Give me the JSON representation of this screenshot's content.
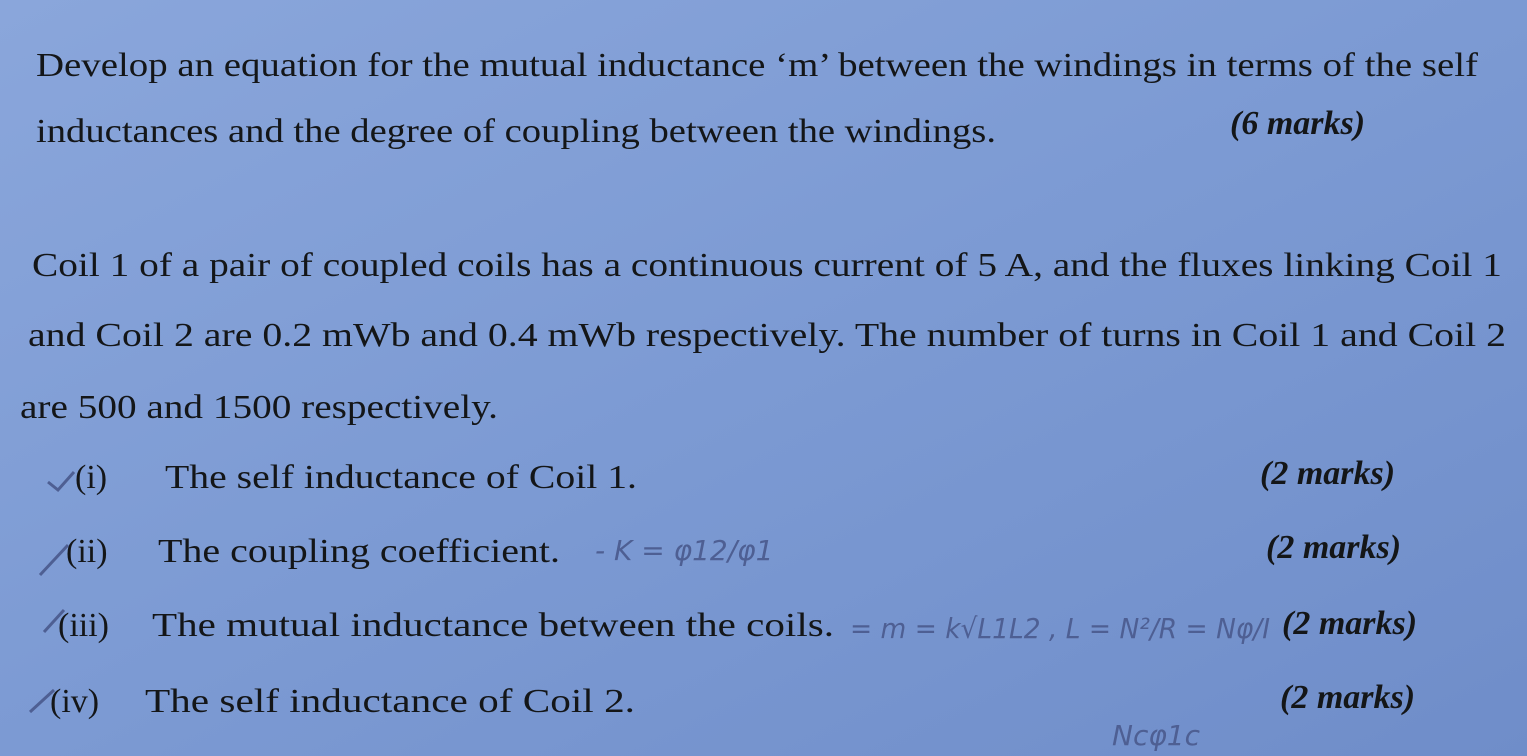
{
  "question_a": {
    "lines": [
      "Develop an equation for the mutual inductance ‘m’ between the windings in terms of the self",
      "inductances and the degree of coupling between the windings."
    ],
    "marks": "(6 marks)"
  },
  "question_b": {
    "lines": [
      "Coil 1 of a pair of coupled coils has a continuous current of 5 A, and the fluxes linking Coil 1",
      "and Coil 2 are 0.2 mWb and 0.4 mWb respectively. The number of turns in Coil 1 and Coil 2",
      "are 500 and 1500 respectively."
    ],
    "items": [
      {
        "number": "(i)",
        "text": "The self inductance of Coil 1.",
        "marks": "(2 marks)"
      },
      {
        "number": "(ii)",
        "text": "The coupling coefficient.",
        "marks": "(2 marks)",
        "annotation": "- K = φ12/φ1"
      },
      {
        "number": "(iii)",
        "text": "The mutual inductance between the coils.",
        "marks": "(2 marks)",
        "annotation": "= m = k√L1L2 , L = N²/R = Nφ/I"
      },
      {
        "number": "(iv)",
        "text": "The self inductance of Coil 2.",
        "marks": "(2 marks)",
        "annotation": "Ncφ1c"
      }
    ]
  }
}
